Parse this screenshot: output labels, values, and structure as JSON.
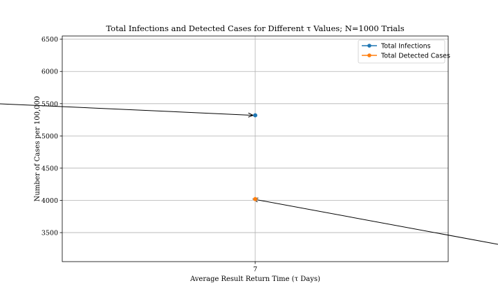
{
  "chart_data": {
    "type": "scatter",
    "title": "Total Infections and Detected Cases for Different τ Values; N=1000 Trials",
    "xlabel": "Average Result Return Time (τ Days)",
    "ylabel": "Number of Cases per 100,000",
    "x_ticks": [
      "7"
    ],
    "y_ticks": [
      3500,
      4000,
      4500,
      5000,
      5500,
      6000,
      6500
    ],
    "ylim": [
      3050,
      6550
    ],
    "grid": true,
    "legend_position": "top-right",
    "series": [
      {
        "name": "Total Infections",
        "color": "#1f77b4",
        "points": [
          {
            "x": "7",
            "y": 5320
          }
        ]
      },
      {
        "name": "Total Detected Cases",
        "color": "#ff7f0e",
        "points": [
          {
            "x": "7",
            "y": 4020
          }
        ]
      }
    ],
    "annotations": [
      {
        "target_series": 0,
        "label": ""
      },
      {
        "target_series": 1,
        "label": ""
      }
    ]
  }
}
